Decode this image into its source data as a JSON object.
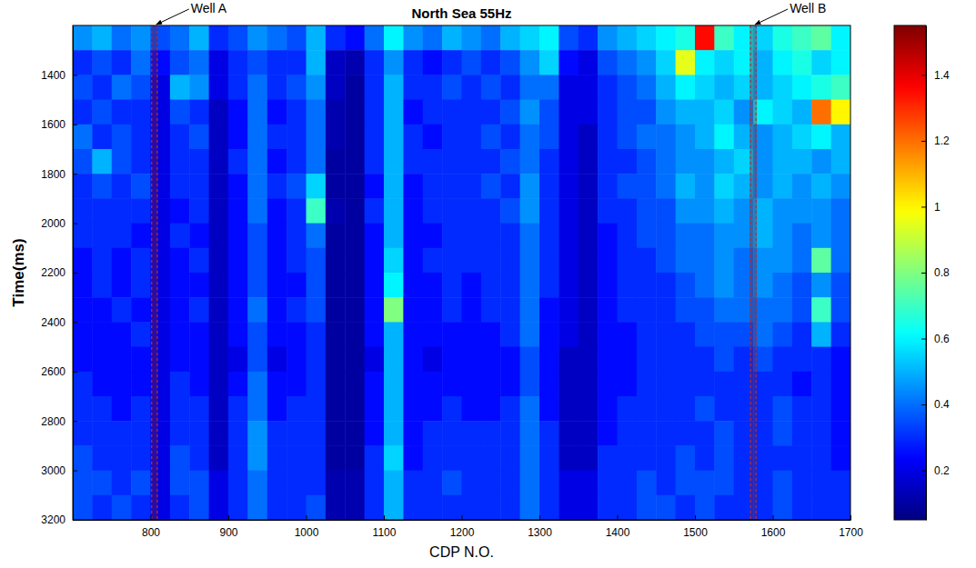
{
  "chart_data": {
    "type": "heatmap",
    "title": "North Sea 55Hz",
    "x_label": "CDP N.O.",
    "y_label": "Time(ms)",
    "xlim": [
      700,
      1700
    ],
    "ylim": [
      1200,
      3200
    ],
    "xticks": [
      800,
      900,
      1000,
      1100,
      1200,
      1300,
      1400,
      1500,
      1600,
      1700
    ],
    "yticks": [
      1400,
      1600,
      1800,
      2000,
      2200,
      2400,
      2600,
      2800,
      3000,
      3200
    ],
    "x_bins": [
      700,
      725,
      750,
      775,
      800,
      825,
      850,
      875,
      900,
      925,
      950,
      975,
      1000,
      1025,
      1050,
      1075,
      1100,
      1125,
      1150,
      1175,
      1200,
      1225,
      1250,
      1275,
      1300,
      1325,
      1350,
      1375,
      1400,
      1425,
      1450,
      1475,
      1500,
      1525,
      1550,
      1575,
      1600,
      1625,
      1650,
      1675,
      1700
    ],
    "y_bins": [
      1200,
      1300,
      1400,
      1500,
      1600,
      1700,
      1800,
      1900,
      2000,
      2100,
      2200,
      2300,
      2400,
      2500,
      2600,
      2700,
      2800,
      2900,
      3000,
      3100,
      3200
    ],
    "cells": [
      [
        0.45,
        0.5,
        0.4,
        0.45,
        0.35,
        0.4,
        0.5,
        0.3,
        0.35,
        0.45,
        0.4,
        0.35,
        0.5,
        0.3,
        0.25,
        0.4,
        0.6,
        0.45,
        0.4,
        0.5,
        0.45,
        0.4,
        0.5,
        0.55,
        0.6,
        0.35,
        0.3,
        0.45,
        0.5,
        0.55,
        0.6,
        0.65,
        1.35,
        0.7,
        0.6,
        0.55,
        0.65,
        0.7,
        0.75,
        0.6
      ],
      [
        0.3,
        0.35,
        0.3,
        0.4,
        0.25,
        0.35,
        0.4,
        0.2,
        0.3,
        0.35,
        0.3,
        0.3,
        0.5,
        0.15,
        0.12,
        0.3,
        0.45,
        0.3,
        0.25,
        0.3,
        0.35,
        0.3,
        0.35,
        0.45,
        0.55,
        0.25,
        0.2,
        0.35,
        0.4,
        0.45,
        0.55,
        0.95,
        0.6,
        0.55,
        0.6,
        0.5,
        0.6,
        0.65,
        0.55,
        0.6
      ],
      [
        0.35,
        0.3,
        0.4,
        0.35,
        0.2,
        0.5,
        0.45,
        0.2,
        0.3,
        0.4,
        0.3,
        0.35,
        0.45,
        0.15,
        0.1,
        0.3,
        0.5,
        0.3,
        0.3,
        0.35,
        0.3,
        0.35,
        0.3,
        0.4,
        0.4,
        0.2,
        0.2,
        0.3,
        0.35,
        0.4,
        0.5,
        0.6,
        0.55,
        0.5,
        0.55,
        0.5,
        0.55,
        0.6,
        0.65,
        0.7
      ],
      [
        0.3,
        0.35,
        0.3,
        0.3,
        0.2,
        0.35,
        0.3,
        0.15,
        0.25,
        0.4,
        0.25,
        0.3,
        0.4,
        0.12,
        0.1,
        0.3,
        0.5,
        0.25,
        0.3,
        0.3,
        0.3,
        0.3,
        0.35,
        0.45,
        0.35,
        0.2,
        0.2,
        0.3,
        0.35,
        0.35,
        0.45,
        0.5,
        0.5,
        0.55,
        0.45,
        0.6,
        0.55,
        0.5,
        1.2,
        1.0
      ],
      [
        0.4,
        0.3,
        0.35,
        0.3,
        0.2,
        0.3,
        0.35,
        0.15,
        0.25,
        0.4,
        0.3,
        0.3,
        0.4,
        0.12,
        0.1,
        0.3,
        0.5,
        0.3,
        0.25,
        0.3,
        0.3,
        0.35,
        0.3,
        0.4,
        0.35,
        0.2,
        0.15,
        0.3,
        0.35,
        0.4,
        0.4,
        0.45,
        0.5,
        0.6,
        0.5,
        0.45,
        0.5,
        0.55,
        0.6,
        0.5
      ],
      [
        0.35,
        0.5,
        0.35,
        0.3,
        0.2,
        0.3,
        0.3,
        0.15,
        0.3,
        0.4,
        0.25,
        0.3,
        0.4,
        0.1,
        0.1,
        0.3,
        0.5,
        0.3,
        0.3,
        0.3,
        0.3,
        0.3,
        0.35,
        0.4,
        0.3,
        0.2,
        0.15,
        0.3,
        0.3,
        0.35,
        0.4,
        0.45,
        0.45,
        0.5,
        0.55,
        0.45,
        0.5,
        0.5,
        0.45,
        0.5
      ],
      [
        0.3,
        0.35,
        0.3,
        0.35,
        0.2,
        0.3,
        0.3,
        0.15,
        0.25,
        0.4,
        0.3,
        0.35,
        0.55,
        0.1,
        0.1,
        0.25,
        0.5,
        0.25,
        0.3,
        0.3,
        0.3,
        0.35,
        0.3,
        0.45,
        0.3,
        0.2,
        0.15,
        0.3,
        0.35,
        0.35,
        0.4,
        0.5,
        0.45,
        0.55,
        0.5,
        0.45,
        0.5,
        0.45,
        0.5,
        0.45
      ],
      [
        0.3,
        0.3,
        0.3,
        0.3,
        0.2,
        0.25,
        0.3,
        0.15,
        0.25,
        0.4,
        0.25,
        0.3,
        0.7,
        0.12,
        0.1,
        0.3,
        0.5,
        0.25,
        0.3,
        0.3,
        0.3,
        0.3,
        0.35,
        0.45,
        0.3,
        0.2,
        0.15,
        0.3,
        0.3,
        0.35,
        0.35,
        0.45,
        0.45,
        0.5,
        0.45,
        0.5,
        0.45,
        0.45,
        0.45,
        0.4
      ],
      [
        0.3,
        0.3,
        0.3,
        0.25,
        0.2,
        0.3,
        0.25,
        0.15,
        0.25,
        0.35,
        0.25,
        0.3,
        0.4,
        0.1,
        0.1,
        0.25,
        0.5,
        0.25,
        0.25,
        0.3,
        0.3,
        0.3,
        0.3,
        0.4,
        0.3,
        0.2,
        0.15,
        0.25,
        0.3,
        0.35,
        0.35,
        0.4,
        0.4,
        0.45,
        0.45,
        0.5,
        0.45,
        0.4,
        0.45,
        0.4
      ],
      [
        0.25,
        0.3,
        0.25,
        0.3,
        0.2,
        0.25,
        0.3,
        0.15,
        0.25,
        0.35,
        0.25,
        0.3,
        0.35,
        0.1,
        0.1,
        0.25,
        0.55,
        0.25,
        0.3,
        0.3,
        0.3,
        0.3,
        0.3,
        0.4,
        0.3,
        0.2,
        0.15,
        0.25,
        0.3,
        0.3,
        0.35,
        0.4,
        0.4,
        0.45,
        0.4,
        0.45,
        0.45,
        0.4,
        0.75,
        0.4
      ],
      [
        0.25,
        0.3,
        0.25,
        0.3,
        0.2,
        0.25,
        0.25,
        0.15,
        0.25,
        0.35,
        0.25,
        0.25,
        0.35,
        0.1,
        0.1,
        0.25,
        0.6,
        0.25,
        0.25,
        0.3,
        0.25,
        0.3,
        0.3,
        0.4,
        0.3,
        0.2,
        0.15,
        0.25,
        0.3,
        0.3,
        0.3,
        0.35,
        0.4,
        0.45,
        0.4,
        0.45,
        0.4,
        0.35,
        0.45,
        0.35
      ],
      [
        0.25,
        0.25,
        0.3,
        0.25,
        0.2,
        0.25,
        0.3,
        0.15,
        0.25,
        0.4,
        0.25,
        0.3,
        0.35,
        0.1,
        0.1,
        0.25,
        0.8,
        0.25,
        0.25,
        0.3,
        0.25,
        0.3,
        0.3,
        0.4,
        0.25,
        0.2,
        0.15,
        0.25,
        0.3,
        0.3,
        0.3,
        0.35,
        0.35,
        0.4,
        0.4,
        0.4,
        0.4,
        0.35,
        0.7,
        0.35
      ],
      [
        0.25,
        0.25,
        0.25,
        0.3,
        0.2,
        0.25,
        0.25,
        0.15,
        0.25,
        0.35,
        0.25,
        0.25,
        0.3,
        0.1,
        0.1,
        0.25,
        0.5,
        0.25,
        0.25,
        0.25,
        0.25,
        0.25,
        0.3,
        0.4,
        0.25,
        0.2,
        0.15,
        0.25,
        0.25,
        0.3,
        0.3,
        0.3,
        0.35,
        0.35,
        0.35,
        0.4,
        0.35,
        0.3,
        0.5,
        0.3
      ],
      [
        0.25,
        0.25,
        0.25,
        0.25,
        0.2,
        0.25,
        0.25,
        0.15,
        0.2,
        0.35,
        0.2,
        0.25,
        0.3,
        0.1,
        0.1,
        0.2,
        0.5,
        0.25,
        0.2,
        0.25,
        0.25,
        0.25,
        0.25,
        0.35,
        0.25,
        0.15,
        0.15,
        0.25,
        0.25,
        0.3,
        0.3,
        0.3,
        0.3,
        0.35,
        0.3,
        0.35,
        0.3,
        0.3,
        0.3,
        0.25
      ],
      [
        0.3,
        0.25,
        0.25,
        0.25,
        0.2,
        0.3,
        0.25,
        0.15,
        0.25,
        0.4,
        0.25,
        0.25,
        0.3,
        0.1,
        0.1,
        0.25,
        0.5,
        0.25,
        0.25,
        0.25,
        0.25,
        0.25,
        0.25,
        0.35,
        0.25,
        0.15,
        0.15,
        0.25,
        0.25,
        0.3,
        0.3,
        0.3,
        0.3,
        0.3,
        0.3,
        0.3,
        0.3,
        0.25,
        0.3,
        0.25
      ],
      [
        0.3,
        0.3,
        0.25,
        0.3,
        0.2,
        0.3,
        0.3,
        0.15,
        0.3,
        0.4,
        0.25,
        0.3,
        0.3,
        0.1,
        0.1,
        0.25,
        0.5,
        0.25,
        0.25,
        0.3,
        0.25,
        0.25,
        0.3,
        0.4,
        0.25,
        0.15,
        0.15,
        0.25,
        0.3,
        0.3,
        0.3,
        0.3,
        0.35,
        0.3,
        0.3,
        0.3,
        0.35,
        0.3,
        0.3,
        0.25
      ],
      [
        0.3,
        0.3,
        0.3,
        0.3,
        0.2,
        0.3,
        0.3,
        0.15,
        0.3,
        0.45,
        0.3,
        0.3,
        0.3,
        0.1,
        0.1,
        0.25,
        0.5,
        0.25,
        0.3,
        0.3,
        0.3,
        0.3,
        0.3,
        0.4,
        0.3,
        0.15,
        0.15,
        0.25,
        0.3,
        0.3,
        0.3,
        0.3,
        0.3,
        0.35,
        0.3,
        0.3,
        0.35,
        0.3,
        0.3,
        0.25
      ],
      [
        0.35,
        0.3,
        0.3,
        0.3,
        0.2,
        0.35,
        0.3,
        0.15,
        0.3,
        0.45,
        0.3,
        0.3,
        0.3,
        0.1,
        0.1,
        0.3,
        0.55,
        0.25,
        0.3,
        0.3,
        0.3,
        0.3,
        0.3,
        0.4,
        0.3,
        0.15,
        0.15,
        0.3,
        0.3,
        0.3,
        0.3,
        0.35,
        0.3,
        0.35,
        0.3,
        0.3,
        0.3,
        0.3,
        0.3,
        0.25
      ],
      [
        0.35,
        0.35,
        0.3,
        0.35,
        0.2,
        0.35,
        0.35,
        0.2,
        0.3,
        0.4,
        0.3,
        0.3,
        0.3,
        0.12,
        0.12,
        0.3,
        0.5,
        0.3,
        0.3,
        0.35,
        0.3,
        0.3,
        0.3,
        0.4,
        0.3,
        0.2,
        0.2,
        0.3,
        0.3,
        0.35,
        0.3,
        0.35,
        0.35,
        0.35,
        0.3,
        0.3,
        0.35,
        0.3,
        0.3,
        0.3
      ],
      [
        0.35,
        0.3,
        0.35,
        0.3,
        0.2,
        0.3,
        0.35,
        0.2,
        0.3,
        0.4,
        0.3,
        0.3,
        0.35,
        0.12,
        0.12,
        0.3,
        0.5,
        0.3,
        0.3,
        0.3,
        0.3,
        0.3,
        0.3,
        0.4,
        0.3,
        0.2,
        0.2,
        0.3,
        0.3,
        0.35,
        0.35,
        0.3,
        0.35,
        0.3,
        0.3,
        0.3,
        0.35,
        0.3,
        0.3,
        0.3
      ]
    ],
    "colorbar": {
      "range": [
        0.05,
        1.55
      ],
      "ticks": [
        0.2,
        0.4,
        0.6,
        0.8,
        1,
        1.2,
        1.4
      ]
    },
    "wells": [
      {
        "label": "Well A",
        "cdp": 805
      },
      {
        "label": "Well B",
        "cdp": 1575
      }
    ]
  }
}
